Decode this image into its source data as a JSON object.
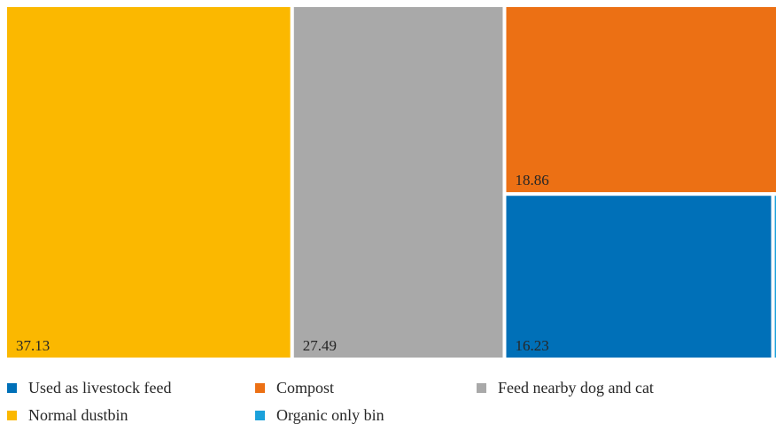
{
  "chart_data": {
    "type": "treemap",
    "title": "",
    "series": [
      {
        "name": "Normal dustbin",
        "value": 37.13,
        "label": "37.13",
        "color": "#FBB800"
      },
      {
        "name": "Feed nearby dog and cat",
        "value": 27.49,
        "label": "27.49",
        "color": "#A9A9A9"
      },
      {
        "name": "Compost",
        "value": 18.86,
        "label": "18.86",
        "color": "#EC7014"
      },
      {
        "name": "Used as livestock feed",
        "value": 16.23,
        "label": "16.23",
        "color": "#0070B8"
      },
      {
        "name": "Organic only bin",
        "value": 0.29,
        "label": "",
        "color": "#1BA1DB"
      }
    ],
    "legend": {
      "placement": "bottom",
      "items": [
        {
          "label": "Used as livestock feed",
          "color": "#0070B8"
        },
        {
          "label": "Compost",
          "color": "#EC7014"
        },
        {
          "label": "Feed nearby dog and cat",
          "color": "#A9A9A9"
        },
        {
          "label": "Normal dustbin",
          "color": "#FBB800"
        },
        {
          "label": "Organic only bin",
          "color": "#1BA1DB"
        }
      ]
    }
  }
}
